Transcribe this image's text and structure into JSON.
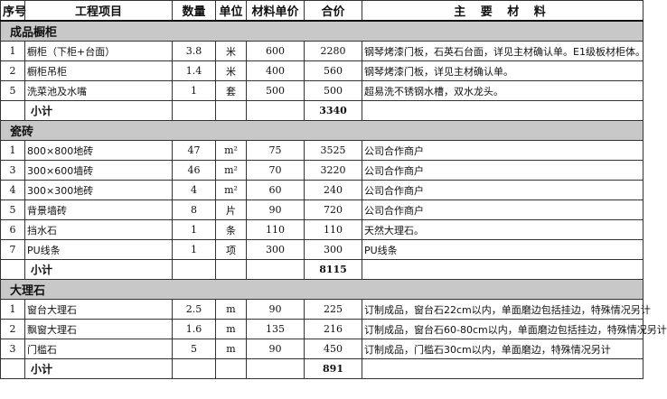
{
  "headers": {
    "seq": "序号",
    "item": "工程项目",
    "qty": "数量",
    "unit": "单位",
    "price": "材料单价",
    "total": "合价",
    "material": "主 要 材 料"
  },
  "sections": [
    {
      "title": "成品橱柜",
      "rows": [
        {
          "seq": "1",
          "item": "橱柜（下柜+台面）",
          "qty": "3.8",
          "unit": "米",
          "price": "600",
          "total": "2280",
          "material": "钢琴烤漆门板，石英石台面，详见主材确认单。E1级板材柜体。"
        },
        {
          "seq": "2",
          "item": "橱柜吊柜",
          "qty": "1.4",
          "unit": "米",
          "price": "400",
          "total": "560",
          "material": "钢琴烤漆门板，详见主材确认单。"
        },
        {
          "seq": "5",
          "item": "洗菜池及水嘴",
          "qty": "1",
          "unit": "套",
          "price": "500",
          "total": "500",
          "material": "超易洗不锈钢水槽，双水龙头。"
        }
      ],
      "subtotal_label": "小计",
      "subtotal": "3340"
    },
    {
      "title": "瓷砖",
      "rows": [
        {
          "seq": "1",
          "item": "800×800地砖",
          "qty": "47",
          "unit": "m²",
          "price": "75",
          "total": "3525",
          "material": "公司合作商户"
        },
        {
          "seq": "3",
          "item": "300×600墙砖",
          "qty": "46",
          "unit": "m²",
          "price": "70",
          "total": "3220",
          "material": "公司合作商户"
        },
        {
          "seq": "4",
          "item": "300×300地砖",
          "qty": "4",
          "unit": "m²",
          "price": "60",
          "total": "240",
          "material": "公司合作商户"
        },
        {
          "seq": "5",
          "item": "背景墙砖",
          "qty": "8",
          "unit": "片",
          "price": "90",
          "total": "720",
          "material": "公司合作商户"
        },
        {
          "seq": "6",
          "item": "挡水石",
          "qty": "1",
          "unit": "条",
          "price": "110",
          "total": "110",
          "material": "天然大理石。"
        },
        {
          "seq": "7",
          "item": "PU线条",
          "qty": "1",
          "unit": "项",
          "price": "300",
          "total": "300",
          "material": "PU线条"
        }
      ],
      "subtotal_label": "小计",
      "subtotal": "8115"
    },
    {
      "title": "大理石",
      "rows": [
        {
          "seq": "1",
          "item": "窗台大理石",
          "qty": "2.5",
          "unit": "m",
          "price": "90",
          "total": "225",
          "material": "订制成品，窗台石22cm以内，单面磨边包括挂边，特殊情况另计"
        },
        {
          "seq": "2",
          "item": "飘窗大理石",
          "qty": "1.6",
          "unit": "m",
          "price": "135",
          "total": "216",
          "material": "订制成品，窗台石60-80cm以内，单面磨边包括挂边，特殊情况另计"
        },
        {
          "seq": "3",
          "item": "门槛石",
          "qty": "5",
          "unit": "m",
          "price": "90",
          "total": "450",
          "material": "订制成品，门槛石30cm以内，单面磨边，特殊情况另计"
        }
      ],
      "subtotal_label": "小计",
      "subtotal": "891"
    }
  ]
}
